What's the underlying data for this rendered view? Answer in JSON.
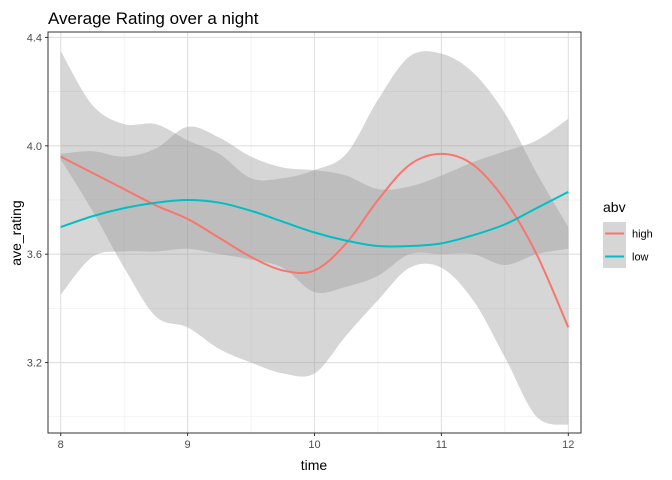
{
  "chart_data": {
    "type": "line",
    "title": "Average Rating over a night",
    "xlabel": "time",
    "ylabel": "ave_rating",
    "xlim": [
      7.9,
      12.1
    ],
    "ylim": [
      2.94,
      4.42
    ],
    "x_ticks": [
      8,
      9,
      10,
      11,
      12
    ],
    "y_ticks": [
      3.2,
      3.6,
      4.0,
      4.4
    ],
    "y_tick_labels": [
      "3.2",
      "3.6",
      "4.0",
      "4.4"
    ],
    "grid": true,
    "legend": {
      "title": "abv",
      "position": "right"
    },
    "x": [
      8,
      8.25,
      8.5,
      8.75,
      9,
      9.25,
      9.5,
      9.75,
      10,
      10.25,
      10.5,
      10.75,
      11,
      11.25,
      11.5,
      11.75,
      12
    ],
    "series": [
      {
        "name": "high",
        "color": "#F8766D",
        "values": [
          3.96,
          3.9,
          3.84,
          3.78,
          3.73,
          3.66,
          3.59,
          3.54,
          3.54,
          3.64,
          3.8,
          3.93,
          3.97,
          3.93,
          3.8,
          3.6,
          3.33
        ],
        "lower": [
          3.95,
          3.76,
          3.55,
          3.37,
          3.33,
          3.25,
          3.2,
          3.16,
          3.16,
          3.3,
          3.43,
          3.55,
          3.55,
          3.43,
          3.22,
          3.0,
          2.97
        ],
        "upper": [
          4.35,
          4.15,
          4.08,
          4.08,
          4.02,
          3.97,
          3.88,
          3.88,
          3.91,
          3.97,
          4.17,
          4.33,
          4.34,
          4.27,
          4.12,
          3.9,
          3.7
        ]
      },
      {
        "name": "low",
        "color": "#00BFC4",
        "values": [
          3.7,
          3.74,
          3.77,
          3.79,
          3.8,
          3.79,
          3.76,
          3.72,
          3.68,
          3.65,
          3.63,
          3.63,
          3.64,
          3.67,
          3.71,
          3.77,
          3.83
        ],
        "lower": [
          3.45,
          3.59,
          3.61,
          3.61,
          3.62,
          3.6,
          3.58,
          3.55,
          3.46,
          3.48,
          3.52,
          3.6,
          3.6,
          3.6,
          3.56,
          3.6,
          3.62
        ],
        "upper": [
          3.97,
          3.98,
          3.96,
          3.99,
          4.07,
          4.03,
          3.96,
          3.92,
          3.91,
          3.89,
          3.84,
          3.85,
          3.89,
          3.94,
          3.98,
          4.02,
          4.1
        ]
      }
    ]
  }
}
